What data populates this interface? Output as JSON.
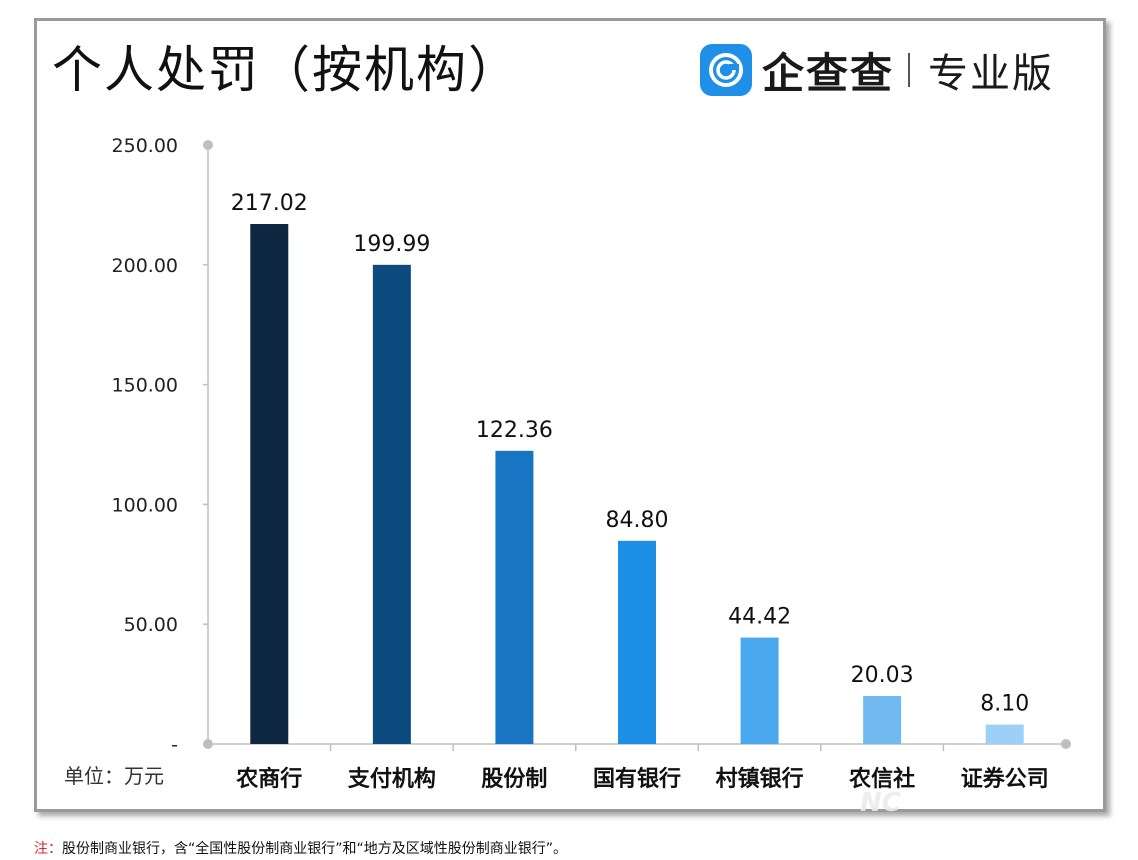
{
  "title": "个人处罚（按机构）",
  "brand": {
    "name": "企查查",
    "edition": "专业版",
    "color": "#1f8fe8"
  },
  "unit_label": "单位：万元",
  "footnote": {
    "prefix": "注：",
    "text": "股份制商业银行，含“全国性股份制商业银行”和“地方及区域性股份制商业银行”。"
  },
  "chart_data": {
    "type": "bar",
    "title": "个人处罚（按机构）",
    "categories": [
      "农商行",
      "支付机构",
      "股份制",
      "国有银行",
      "村镇银行",
      "农信社",
      "证券公司"
    ],
    "values": [
      217.02,
      199.99,
      122.36,
      84.8,
      44.42,
      20.03,
      8.1
    ],
    "value_labels": [
      "217.02",
      "199.99",
      "122.36",
      "84.80",
      "44.42",
      "20.03",
      "8.10"
    ],
    "colors": [
      "#0d2741",
      "#0d4a7e",
      "#1775c4",
      "#1e8fe6",
      "#4aa8ef",
      "#71baf1",
      "#9dd0f6"
    ],
    "y_ticks": [
      {
        "value": 0,
        "label": "-"
      },
      {
        "value": 50,
        "label": "50.00"
      },
      {
        "value": 100,
        "label": "100.00"
      },
      {
        "value": 150,
        "label": "150.00"
      },
      {
        "value": 200,
        "label": "200.00"
      },
      {
        "value": 250,
        "label": "250.00"
      }
    ],
    "ylim": [
      0,
      250
    ],
    "xlabel": "",
    "ylabel": "单位：万元",
    "grid": false
  }
}
